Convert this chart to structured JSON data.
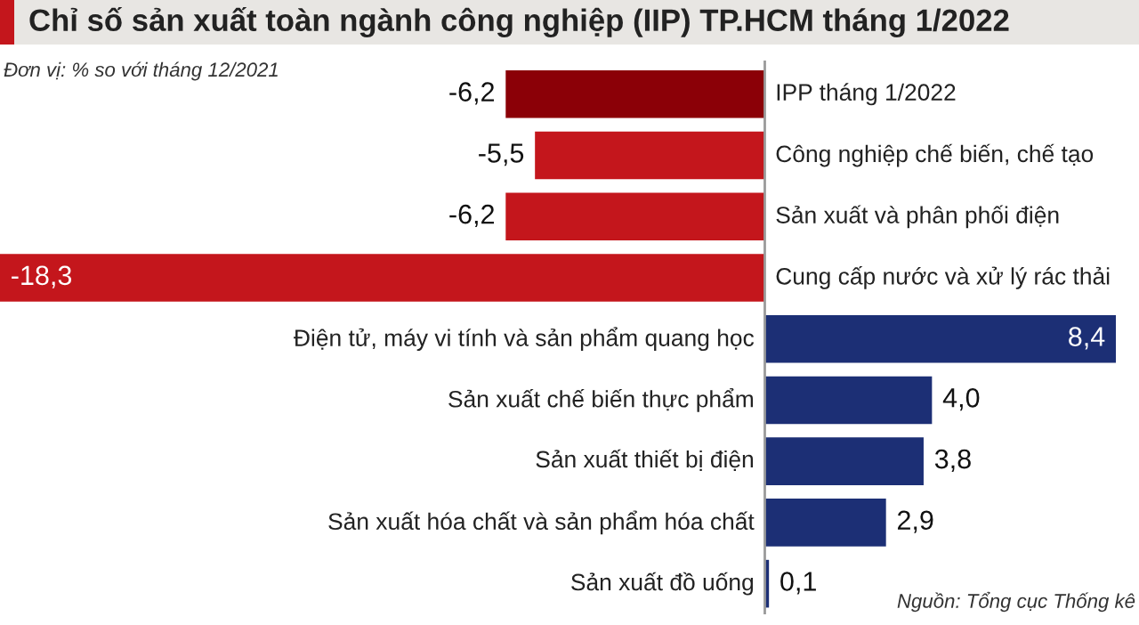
{
  "chart_data": {
    "type": "bar",
    "orientation": "horizontal",
    "title": "Chỉ số sản xuất toàn ngành công nghiệp (IIP) TP.HCM tháng 1/2022",
    "annotations": [
      "Đơn vị: % so với tháng 12/2021",
      "Nguồn: Tổng cục Thống kê"
    ],
    "categories": [
      "IPP tháng 1/2022",
      "Công nghiệp chế biến, chế tạo",
      "Sản xuất và phân phối điện",
      "Cung cấp nước và xử lý rác thải",
      "Điện tử, máy vi tính và sản phẩm quang học",
      "Sản xuất chế biến thực phẩm",
      "Sản xuất thiết bị điện",
      "Sản xuất hóa chất và sản phẩm hóa chất",
      "Sản xuất đồ uống"
    ],
    "values": [
      -6.2,
      -5.5,
      -6.2,
      -18.3,
      8.4,
      4.0,
      3.8,
      2.9,
      0.1
    ],
    "value_labels": [
      "-6,2",
      "-5,5",
      "-6,2",
      "-18,3",
      "8,4",
      "4,0",
      "3,8",
      "2,9",
      "0,1"
    ],
    "colors": [
      "#8b0007",
      "#c4161c",
      "#c4161c",
      "#c4161c",
      "#1c2f75",
      "#1c2f75",
      "#1c2f75",
      "#1c2f75",
      "#1c2f75"
    ],
    "data_labels": false
  }
}
